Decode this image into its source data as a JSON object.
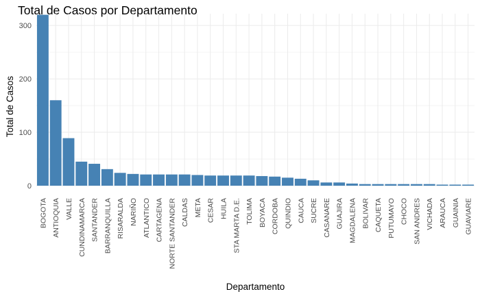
{
  "chart_data": {
    "type": "bar",
    "title": "Total de Casos por Departamento",
    "xlabel": "Departamento",
    "ylabel": "Total de Casos",
    "ylim": [
      0,
      322
    ],
    "yticks": [
      0,
      100,
      200,
      300
    ],
    "grid": true,
    "legend": "none",
    "bar_color": "#4682b4",
    "grid_color": "#ebebeb",
    "categories": [
      "BOGOTA",
      "ANTIOQUIA",
      "VALLE",
      "CUNDINAMARCA",
      "SANTANDER",
      "BARRANQUILLA",
      "RISARALDA",
      "NARIÑO",
      "ATLANTICO",
      "CARTAGENA",
      "NORTE SANTANDER",
      "CALDAS",
      "META",
      "CESAR",
      "HUILA",
      "STA MARTA D.E.",
      "TOLIMA",
      "BOYACA",
      "CORDOBA",
      "QUINDIO",
      "CAUCA",
      "SUCRE",
      "CASANARE",
      "GUAJIRA",
      "MAGDALENA",
      "BOLIVAR",
      "CAQUETA",
      "PUTUMAYO",
      "CHOCO",
      "SAN ANDRES",
      "VICHADA",
      "ARAUCA",
      "GUAINIA",
      "GUAVIARE"
    ],
    "values": [
      320,
      160,
      89,
      45,
      41,
      31,
      24,
      22,
      21,
      21,
      21,
      21,
      20,
      19,
      19,
      19,
      19,
      18,
      17,
      15,
      13,
      10,
      6,
      6,
      4,
      3,
      3,
      3,
      3,
      3,
      3,
      2,
      2,
      2
    ]
  }
}
